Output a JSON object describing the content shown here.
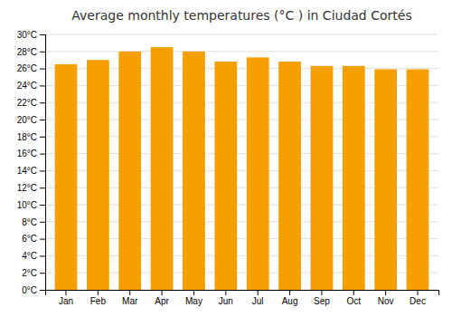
{
  "chart_data": {
    "type": "bar",
    "title": "Average monthly temperatures (°C ) in Ciudad Cortés",
    "categories": [
      "Jan",
      "Feb",
      "Mar",
      "Apr",
      "May",
      "Jun",
      "Jul",
      "Aug",
      "Sep",
      "Oct",
      "Nov",
      "Dec"
    ],
    "values": [
      26.5,
      27.0,
      28.0,
      28.5,
      28.0,
      26.8,
      27.3,
      26.8,
      26.3,
      26.3,
      25.9,
      25.9
    ],
    "color": "#F5A000",
    "ylim": [
      0,
      30
    ],
    "yticks": [
      {
        "value": 0,
        "label": "0°C"
      },
      {
        "value": 2,
        "label": "2°C"
      },
      {
        "value": 4,
        "label": "4°C"
      },
      {
        "value": 6,
        "label": "6°C"
      },
      {
        "value": 8,
        "label": "8°C"
      },
      {
        "value": 10,
        "label": "10°C"
      },
      {
        "value": 12,
        "label": "12°C"
      },
      {
        "value": 14,
        "label": "14°C"
      },
      {
        "value": 16,
        "label": "16°C"
      },
      {
        "value": 18,
        "label": "18°C"
      },
      {
        "value": 20,
        "label": "20°C"
      },
      {
        "value": 22,
        "label": "22°C"
      },
      {
        "value": 24,
        "label": "24°C"
      },
      {
        "value": 26,
        "label": "26°C"
      },
      {
        "value": 28,
        "label": "28°C"
      },
      {
        "value": 30,
        "label": "30°C"
      }
    ],
    "grid": true
  }
}
